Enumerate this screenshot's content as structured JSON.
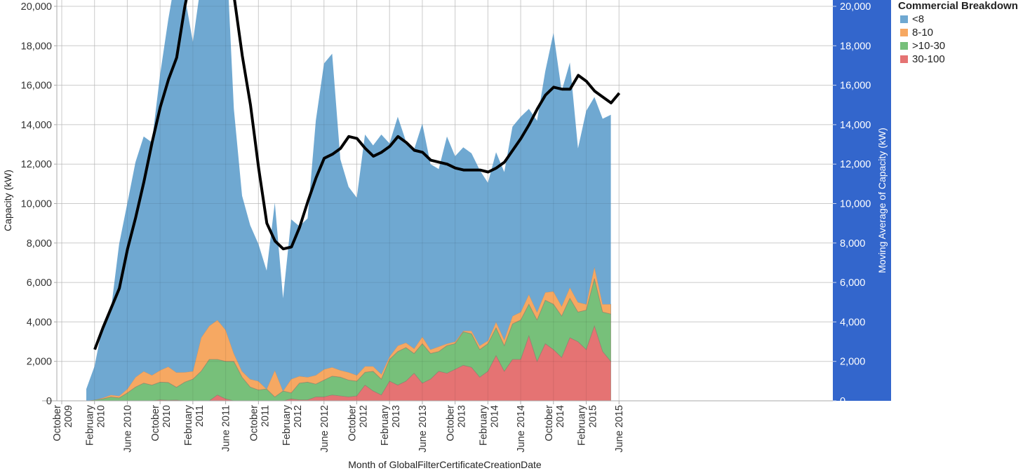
{
  "chart_data": {
    "type": "area",
    "stacked": true,
    "x": [
      "2010-01",
      "2010-02",
      "2010-03",
      "2010-04",
      "2010-05",
      "2010-06",
      "2010-07",
      "2010-08",
      "2010-09",
      "2010-10",
      "2010-11",
      "2010-12",
      "2011-01",
      "2011-02",
      "2011-03",
      "2011-04",
      "2011-05",
      "2011-06",
      "2011-07",
      "2011-08",
      "2011-09",
      "2011-10",
      "2011-11",
      "2011-12",
      "2012-01",
      "2012-02",
      "2012-03",
      "2012-04",
      "2012-05",
      "2012-06",
      "2012-07",
      "2012-08",
      "2012-09",
      "2012-10",
      "2012-11",
      "2012-12",
      "2013-01",
      "2013-02",
      "2013-03",
      "2013-04",
      "2013-05",
      "2013-06",
      "2013-07",
      "2013-08",
      "2013-09",
      "2013-10",
      "2013-11",
      "2013-12",
      "2014-01",
      "2014-02",
      "2014-03",
      "2014-04",
      "2014-05",
      "2014-06",
      "2014-07",
      "2014-08",
      "2014-09",
      "2014-10",
      "2014-11",
      "2014-12",
      "2015-01",
      "2015-02",
      "2015-03",
      "2015-04",
      "2015-05"
    ],
    "series": [
      {
        "name": "30-100",
        "color": "#e57373",
        "values": [
          0,
          0,
          0,
          0,
          0,
          0,
          0,
          0,
          0,
          50,
          30,
          40,
          0,
          0,
          0,
          0,
          300,
          100,
          0,
          0,
          0,
          0,
          0,
          0,
          0,
          100,
          50,
          50,
          200,
          200,
          300,
          250,
          200,
          250,
          800,
          500,
          300,
          1000,
          800,
          1000,
          1400,
          900,
          1100,
          1500,
          1400,
          1600,
          1800,
          1700,
          1200,
          1500,
          2300,
          1500,
          2100,
          2100,
          3300,
          2000,
          2900,
          2600,
          2200,
          3200,
          3000,
          2600,
          3800,
          2500,
          2000
        ]
      },
      {
        "name": ">10-30",
        "color": "#77c07a",
        "values": [
          0,
          50,
          100,
          200,
          150,
          400,
          700,
          900,
          800,
          900,
          900,
          650,
          950,
          1100,
          1500,
          2100,
          1800,
          1900,
          2000,
          1200,
          700,
          550,
          600,
          200,
          500,
          300,
          850,
          900,
          650,
          850,
          950,
          950,
          850,
          750,
          650,
          1000,
          800,
          1100,
          1700,
          1700,
          1000,
          2000,
          1300,
          1000,
          1400,
          1300,
          1700,
          1700,
          1400,
          1400,
          1400,
          1300,
          1800,
          2000,
          1600,
          2100,
          2200,
          2300,
          2100,
          2000,
          1500,
          2000,
          2400,
          2000,
          2400
        ]
      },
      {
        "name": "8-10",
        "color": "#f6a862",
        "values": [
          0,
          0,
          50,
          100,
          100,
          200,
          500,
          600,
          500,
          600,
          800,
          750,
          500,
          400,
          1700,
          1700,
          2000,
          1600,
          400,
          300,
          400,
          450,
          0,
          1350,
          0,
          700,
          350,
          250,
          450,
          550,
          450,
          350,
          400,
          300,
          300,
          250,
          250,
          150,
          300,
          250,
          250,
          350,
          200,
          250,
          100,
          100,
          50,
          150,
          200,
          150,
          300,
          300,
          400,
          400,
          500,
          400,
          400,
          650,
          500,
          550,
          500,
          300,
          600,
          400,
          500
        ]
      },
      {
        "name": "<8",
        "color": "#6fa8d1",
        "values": [
          600,
          1700,
          3700,
          4300,
          7700,
          9400,
          10900,
          11900,
          11800,
          15000,
          17600,
          20300,
          19100,
          16700,
          18000,
          19000,
          21000,
          20000,
          12400,
          8900,
          7800,
          6950,
          6000,
          8500,
          4700,
          8100,
          7600,
          8050,
          12900,
          15500,
          15900,
          10700,
          9400,
          9000,
          11750,
          11200,
          12150,
          10800,
          11600,
          10200,
          10100,
          10800,
          9400,
          9000,
          10500,
          9400,
          9300,
          9000,
          8900,
          8000,
          8600,
          8500,
          9600,
          9900,
          9400,
          9700,
          11200,
          13100,
          10900,
          11400,
          7800,
          9800,
          8600,
          9400,
          9600
        ]
      }
    ],
    "moving_average": {
      "name": "Moving Average of Capacity (kW)",
      "color": "#000000",
      "x_start": "2010-01",
      "values": [
        2600,
        3700,
        4700,
        5700,
        7700,
        9300,
        11100,
        13100,
        14900,
        16300,
        17400,
        20000,
        22000,
        21000,
        21000,
        21500,
        21000,
        20500,
        17500,
        15000,
        11800,
        9000,
        8100,
        7700,
        7800,
        8800,
        10100,
        11300,
        12300,
        12500,
        12800,
        13400,
        13300,
        12800,
        12400,
        12600,
        12900,
        13400,
        13100,
        12700,
        12600,
        12200,
        12100,
        12000,
        11800,
        11700,
        11700,
        11700,
        11600,
        11800,
        12100,
        12700,
        13300,
        14000,
        14800,
        15500,
        15900,
        15800,
        15800,
        16500,
        16200,
        15700,
        15400,
        15100,
        15600
      ]
    },
    "title": "",
    "xlabel": "Month of GlobalFilterCertificateCreationDate",
    "ylabel": "Capacity (kW)",
    "y2label": "Moving Average of Capacity (kW)",
    "ylim": [
      0,
      20000
    ],
    "y2lim": [
      0,
      20000
    ],
    "yticks": [
      "0",
      "2,000",
      "4,000",
      "6,000",
      "8,000",
      "10,000",
      "12,000",
      "14,000",
      "16,000",
      "18,000",
      "20,000"
    ],
    "xticks": [
      {
        "month": "2009-10",
        "line1": "October",
        "line2": "2009"
      },
      {
        "month": "2010-02",
        "line1": "February",
        "line2": "2010"
      },
      {
        "month": "2010-06",
        "line1": "June 2010",
        "line2": ""
      },
      {
        "month": "2010-10",
        "line1": "October",
        "line2": "2010"
      },
      {
        "month": "2011-02",
        "line1": "February",
        "line2": "2011"
      },
      {
        "month": "2011-06",
        "line1": "June 2011",
        "line2": ""
      },
      {
        "month": "2011-10",
        "line1": "October",
        "line2": "2011"
      },
      {
        "month": "2012-02",
        "line1": "February",
        "line2": "2012"
      },
      {
        "month": "2012-06",
        "line1": "June 2012",
        "line2": ""
      },
      {
        "month": "2012-10",
        "line1": "October",
        "line2": "2012"
      },
      {
        "month": "2013-02",
        "line1": "February",
        "line2": "2013"
      },
      {
        "month": "2013-06",
        "line1": "June 2013",
        "line2": ""
      },
      {
        "month": "2013-10",
        "line1": "October",
        "line2": "2013"
      },
      {
        "month": "2014-02",
        "line1": "February",
        "line2": "2014"
      },
      {
        "month": "2014-06",
        "line1": "June 2014",
        "line2": ""
      },
      {
        "month": "2014-10",
        "line1": "October",
        "line2": "2014"
      },
      {
        "month": "2015-02",
        "line1": "February",
        "line2": "2015"
      },
      {
        "month": "2015-06",
        "line1": "June 2015",
        "line2": ""
      }
    ],
    "grid": true,
    "legend_position": "top-right",
    "right_axis_color": "#3366cc"
  },
  "legend": {
    "title": "Commercial Breakdown",
    "items": [
      {
        "label": "<8",
        "color": "#6fa8d1"
      },
      {
        "label": "8-10",
        "color": "#f6a862"
      },
      {
        "label": ">10-30",
        "color": "#77c07a"
      },
      {
        "label": "30-100",
        "color": "#e57373"
      }
    ]
  }
}
